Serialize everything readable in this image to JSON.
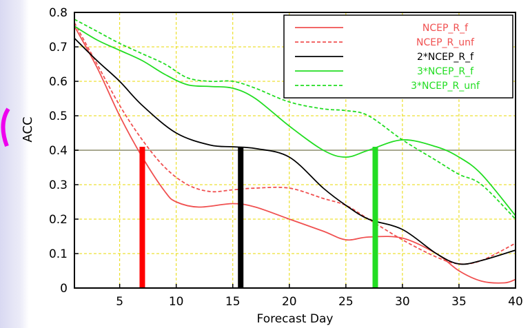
{
  "chart_data": {
    "type": "line",
    "title": "",
    "xlabel": "Forecast Day",
    "ylabel": "ACC",
    "xlim": [
      1,
      40
    ],
    "ylim": [
      0,
      0.8
    ],
    "xticks": [
      5,
      10,
      15,
      20,
      25,
      30,
      35,
      40
    ],
    "yticks": [
      0,
      0.1,
      0.2,
      0.3,
      0.4,
      0.5,
      0.6,
      0.7,
      0.8
    ],
    "x_tick_labels": [
      "5",
      "10",
      "15",
      "20",
      "25",
      "30",
      "35",
      "40"
    ],
    "y_tick_labels": [
      "0",
      "0.1",
      "0.2",
      "0.3",
      "0.4",
      "0.5",
      "0.6",
      "0.7",
      "0.8"
    ],
    "grid": true,
    "reference_line": 0.4,
    "legend_position": "top-right",
    "series": [
      {
        "name": "NCEP_R_f",
        "color": "#f05050",
        "style": "solid",
        "x": [
          1,
          3,
          5,
          7,
          9,
          10,
          12,
          15,
          17,
          20,
          23,
          25,
          27,
          30,
          33,
          35,
          37,
          39,
          40
        ],
        "y": [
          0.76,
          0.64,
          0.5,
          0.38,
          0.28,
          0.25,
          0.235,
          0.245,
          0.235,
          0.2,
          0.165,
          0.14,
          0.148,
          0.145,
          0.1,
          0.05,
          0.02,
          0.015,
          0.025
        ]
      },
      {
        "name": "NCEP_R_unf",
        "color": "#f05050",
        "style": "dashed",
        "x": [
          1,
          3,
          5,
          7,
          9,
          11,
          13,
          15,
          17,
          20,
          23,
          25,
          27,
          30,
          33,
          35,
          37,
          40
        ],
        "y": [
          0.77,
          0.65,
          0.53,
          0.43,
          0.35,
          0.3,
          0.28,
          0.285,
          0.29,
          0.29,
          0.26,
          0.24,
          0.2,
          0.14,
          0.09,
          0.07,
          0.08,
          0.13
        ]
      },
      {
        "name": "2*NCEP_R_f",
        "color": "#000000",
        "style": "solid",
        "x": [
          1,
          3,
          5,
          7,
          10,
          13,
          15,
          17,
          20,
          23,
          25,
          27,
          30,
          33,
          35,
          37,
          40
        ],
        "y": [
          0.725,
          0.66,
          0.6,
          0.53,
          0.45,
          0.415,
          0.41,
          0.405,
          0.38,
          0.29,
          0.24,
          0.2,
          0.17,
          0.1,
          0.07,
          0.08,
          0.11
        ]
      },
      {
        "name": "3*NCEP_R_f",
        "color": "#22dd22",
        "style": "solid",
        "x": [
          1,
          3,
          5,
          7,
          9,
          11,
          13,
          15,
          17,
          20,
          23,
          25,
          27,
          30,
          33,
          35,
          37,
          40
        ],
        "y": [
          0.76,
          0.72,
          0.69,
          0.66,
          0.62,
          0.59,
          0.585,
          0.58,
          0.55,
          0.47,
          0.4,
          0.38,
          0.4,
          0.43,
          0.41,
          0.38,
          0.33,
          0.21
        ]
      },
      {
        "name": "3*NCEP_R_unf",
        "color": "#22dd22",
        "style": "dashed",
        "x": [
          1,
          3,
          5,
          7,
          9,
          11,
          13,
          15,
          17,
          20,
          23,
          25,
          27,
          30,
          33,
          35,
          37,
          40
        ],
        "y": [
          0.78,
          0.745,
          0.71,
          0.68,
          0.65,
          0.61,
          0.6,
          0.6,
          0.58,
          0.54,
          0.52,
          0.515,
          0.5,
          0.43,
          0.37,
          0.33,
          0.3,
          0.2
        ]
      }
    ],
    "markers": [
      {
        "x": 7,
        "y0": 0,
        "y1": 0.41,
        "color": "#ff0000"
      },
      {
        "x": 15.7,
        "y0": 0,
        "y1": 0.41,
        "color": "#000000"
      },
      {
        "x": 27.6,
        "y0": 0,
        "y1": 0.41,
        "color": "#22dd22"
      }
    ]
  }
}
